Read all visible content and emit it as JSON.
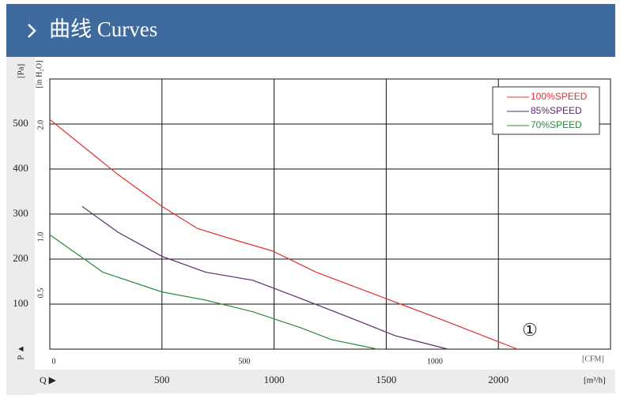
{
  "header": {
    "title": "曲线 Curves"
  },
  "chart_data": {
    "type": "line",
    "y_label": "[Pa]",
    "y2_label": "[in H₂O]",
    "y_axis_symbol": "P ▲",
    "x_axis_symbol": "Q ▶",
    "x_label": "[m³/h]",
    "x2_label": "[CFM]",
    "xlim": [
      0,
      2500
    ],
    "xticks": [
      500,
      1000,
      1500,
      2000
    ],
    "x2lim": [
      0,
      1471.5
    ],
    "x2ticks": [
      0,
      500,
      1000
    ],
    "ylim": [
      0,
      600
    ],
    "yticks": [
      100,
      200,
      300,
      400,
      500
    ],
    "y2lim": [
      0,
      2.409
    ],
    "y2ticks": [
      0.5,
      {
        "value": 1,
        "label": "1.0"
      },
      {
        "value": 2,
        "label": "2.0"
      }
    ],
    "grid": true,
    "legend": "top-right",
    "annotation": "①",
    "series": [
      {
        "name": "100%SPEED",
        "color": "#e03030",
        "x": [
          0,
          306,
          500,
          658,
          835,
          993,
          1187,
          1468,
          1750,
          2085
        ],
        "values": [
          510,
          387,
          317,
          268,
          241,
          218,
          171,
          118,
          65,
          0
        ]
      },
      {
        "name": "85%SPEED",
        "color": "#5a2a6a",
        "x": [
          144,
          306,
          500,
          694,
          905,
          1116,
          1363,
          1539,
          1775
        ],
        "values": [
          317,
          259,
          206,
          171,
          153,
          113,
          65,
          30,
          0
        ]
      },
      {
        "name": "70%SPEED",
        "color": "#2a8a3a",
        "x": [
          0,
          236,
          500,
          694,
          905,
          1116,
          1257,
          1461
        ],
        "values": [
          254,
          171,
          127,
          109,
          83,
          48,
          21,
          0
        ]
      }
    ]
  }
}
